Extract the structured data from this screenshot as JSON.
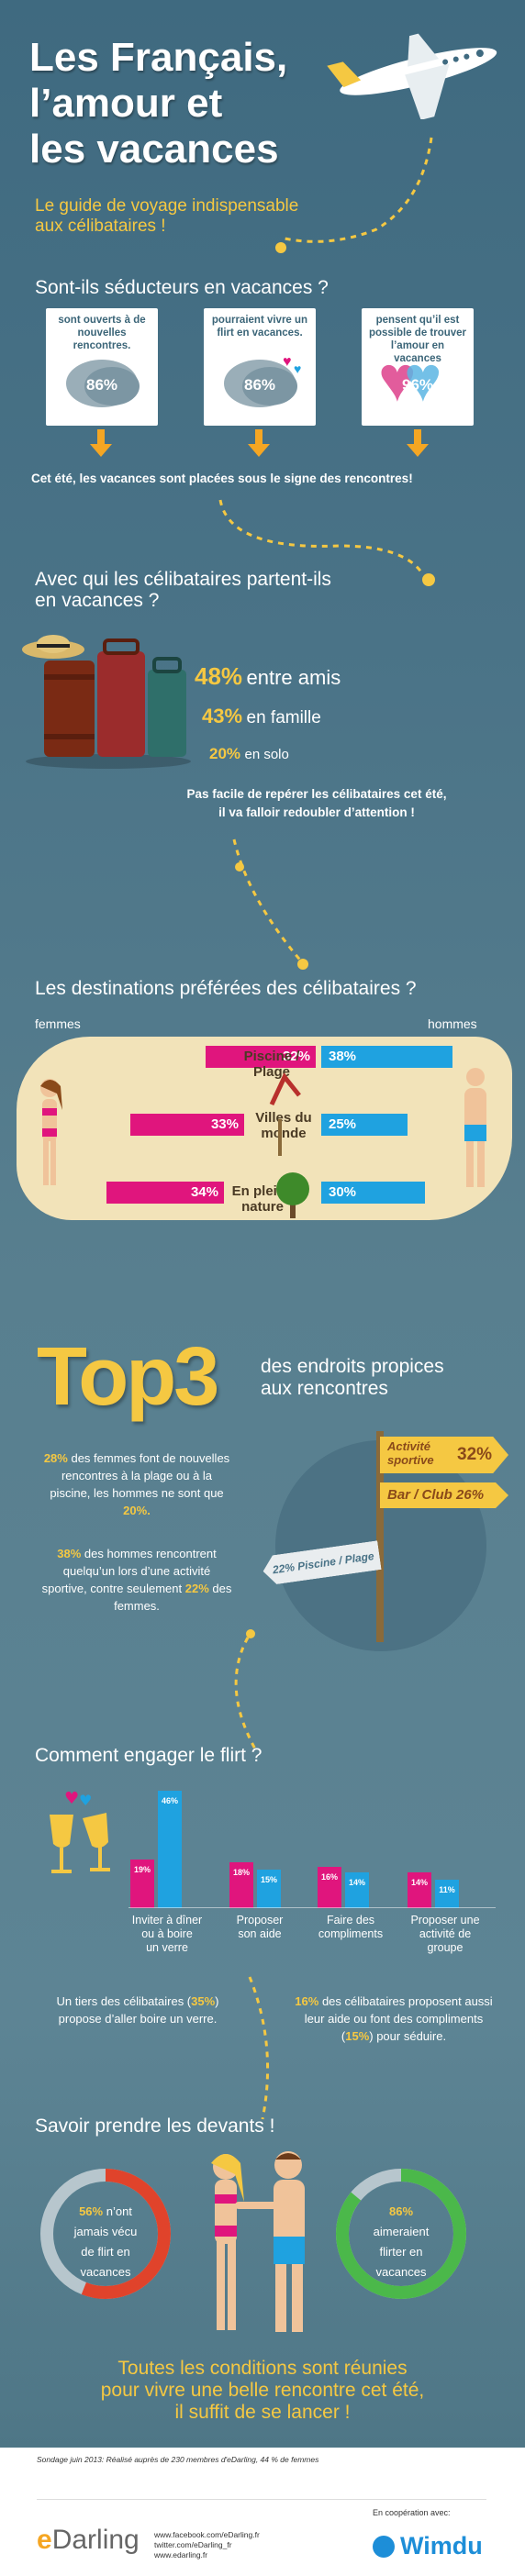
{
  "header": {
    "title_l1": "Les Français,",
    "title_l2": "l’amour et",
    "title_l3": "les vacances",
    "subtitle_l1": "Le guide de voyage indispensable",
    "subtitle_l2": "aux célibataires !"
  },
  "s1": {
    "heading": "Sont-ils séducteurs en vacances ?",
    "cards": [
      {
        "text": "sont ouverts à de nouvelles rencontres.",
        "pct": "86%"
      },
      {
        "text": "pourraient vivre un flirt en vacances.",
        "pct": "86%"
      },
      {
        "text": "pensent qu’il est possible de trouver l’amour en vacances",
        "pct": "96%"
      }
    ],
    "conclusion": "Cet été, les vacances sont placées sous le signe des rencontres!"
  },
  "s2": {
    "heading_l1": "Avec qui les célibataires partent-ils",
    "heading_l2": "en vacances ?",
    "items": [
      {
        "pct": "48%",
        "label": "entre amis"
      },
      {
        "pct": "43%",
        "label": "en famille"
      },
      {
        "pct": "20%",
        "label": "en solo"
      }
    ],
    "note_l1": "Pas facile de repérer les célibataires cet été,",
    "note_l2": "il va falloir redoubler d’attention !"
  },
  "s3": {
    "heading": "Les destinations préférées des célibataires ?",
    "left_label": "femmes",
    "right_label": "hommes",
    "rows": [
      {
        "dest": "Piscine / Plage",
        "women": 32,
        "women_label": "32%",
        "men": 38,
        "men_label": "38%"
      },
      {
        "dest": "Villes du monde",
        "women": 33,
        "women_label": "33%",
        "men": 25,
        "men_label": "25%"
      },
      {
        "dest": "En pleine nature",
        "women": 34,
        "women_label": "34%",
        "men": 30,
        "men_label": "30%"
      }
    ]
  },
  "s4": {
    "big": "Top3",
    "heading_l1": "des endroits propices",
    "heading_l2": "aux rencontres",
    "p1_pct1": "28%",
    "p1_text": "des femmes font de nouvelles rencontres à la plage ou à la piscine, les hommes ne sont que",
    "p1_pct2": "20%.",
    "p2_pct1": "38%",
    "p2_text": "des hommes rencontrent quelqu’un lors d’une activité sportive, contre seulement",
    "p2_pct2": "22%",
    "p2_tail": "des femmes.",
    "sign1_label": "Activité sportive",
    "sign1_pct": "32%",
    "sign2": "Bar / Club 26%",
    "sign3": "22% Piscine / Plage"
  },
  "s5": {
    "heading": "Comment engager le flirt ?",
    "chart_data": {
      "type": "bar",
      "categories": [
        "Inviter à dîner ou à boire un verre",
        "Proposer son aide",
        "Faire des compliments",
        "Proposer une activité de groupe"
      ],
      "series": [
        {
          "values": [
            19,
            18,
            16,
            14
          ],
          "color": "#e0157d"
        },
        {
          "values": [
            46,
            15,
            14,
            11
          ],
          "color": "#1fa2e0"
        }
      ],
      "labels_pink": [
        "19%",
        "18%",
        "16%",
        "14%"
      ],
      "labels_blue": [
        "46%",
        "15%",
        "14%",
        "11%"
      ],
      "ylim": [
        0,
        46
      ]
    },
    "cat_lines": [
      [
        "Inviter à dîner",
        "ou à boire",
        "un verre"
      ],
      [
        "Proposer",
        "son aide"
      ],
      [
        "Faire des",
        "compliments"
      ],
      [
        "Proposer une",
        "activité de",
        "groupe"
      ]
    ],
    "left_a": "Un tiers des célibataires (",
    "left_pct": "35%",
    "left_b": ")",
    "left_c": "propose d’aller boire un verre.",
    "right_pct": "16%",
    "right_a": "des célibataires proposent",
    "right_b": "aussi leur aide ou font des",
    "right_c": "compliments (",
    "right_pct2": "15%",
    "right_d": ") pour séduire."
  },
  "s6": {
    "heading": "Savoir prendre les devants !",
    "left_pct": "56%",
    "left_l1": "n’ont",
    "left_l2": "jamais vécu",
    "left_l3": "de flirt en",
    "left_l4": "vacances",
    "left_value": 56,
    "right_pct": "86%",
    "right_l1": "aimeraient",
    "right_l2": "flirter en",
    "right_l3": "vacances",
    "right_value": 86,
    "closing_l1": "Toutes les conditions sont réunies",
    "closing_l2": "pour vivre une belle rencontre cet été,",
    "closing_l3": "il suffit de se lancer !"
  },
  "footer": {
    "source": "Sondage juin 2013: Réalisé auprès de 230 membres d'eDarling, 44 % de femmes",
    "brand_e": "e",
    "brand_rest": "Darling",
    "link1": "www.facebook.com/eDarling.fr",
    "link2": "twitter.com/eDarling_fr",
    "link3": "www.edarling.fr",
    "coop": "En coopération avec:",
    "partner": "Wimdu"
  },
  "colors": {
    "accent": "#f5c842",
    "pink": "#e0157d",
    "blue": "#1fa2e0",
    "orange": "#f5a623"
  }
}
